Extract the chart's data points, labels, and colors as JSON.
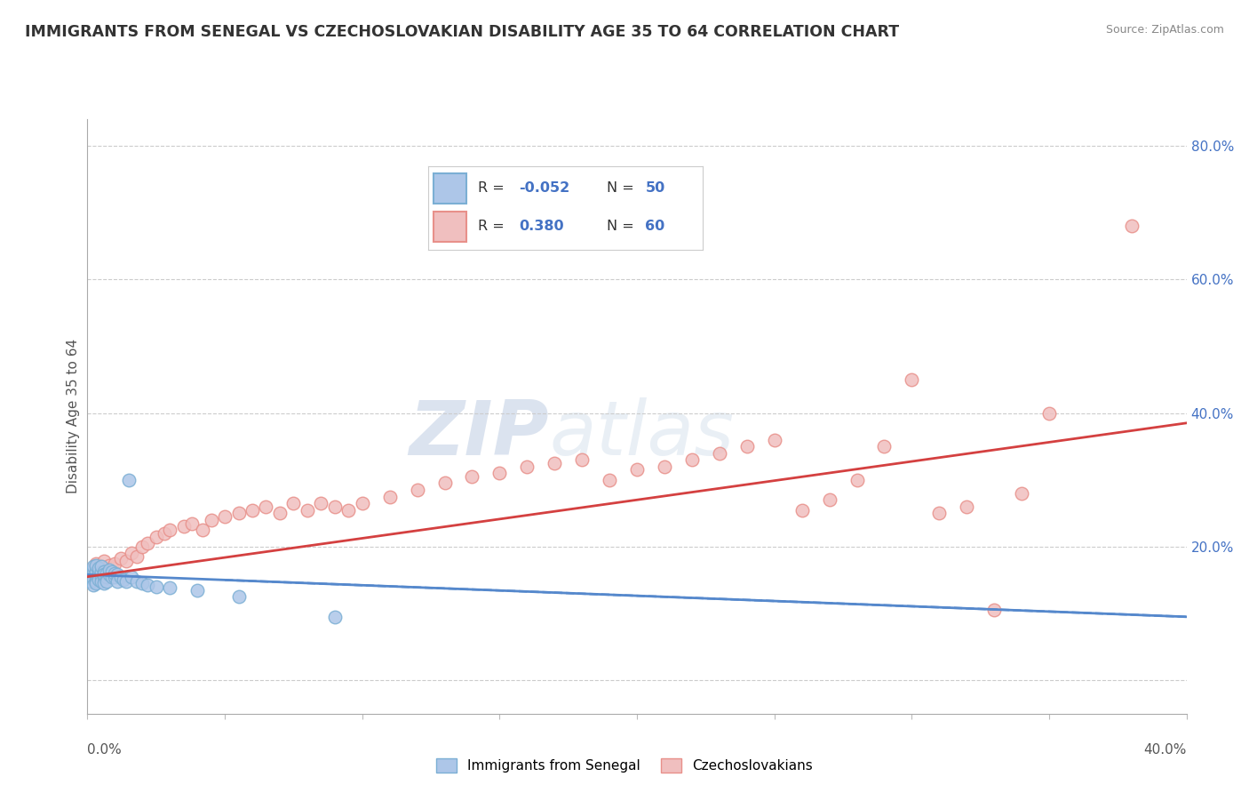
{
  "title": "IMMIGRANTS FROM SENEGAL VS CZECHOSLOVAKIAN DISABILITY AGE 35 TO 64 CORRELATION CHART",
  "source": "Source: ZipAtlas.com",
  "ylabel": "Disability Age 35 to 64",
  "xlim": [
    0.0,
    0.4
  ],
  "ylim": [
    -0.05,
    0.84
  ],
  "yticks": [
    0.0,
    0.2,
    0.4,
    0.6,
    0.8
  ],
  "ytick_labels": [
    "",
    "20.0%",
    "40.0%",
    "60.0%",
    "80.0%"
  ],
  "blue_color": "#7bafd4",
  "pink_color": "#e8908a",
  "blue_face": "#adc6e8",
  "pink_face": "#f0bfbf",
  "blue_line_color": "#5588cc",
  "pink_line_color": "#d44040",
  "watermark_zip": "ZIP",
  "watermark_atlas": "atlas",
  "blue_points_x": [
    0.001,
    0.001,
    0.001,
    0.002,
    0.002,
    0.002,
    0.002,
    0.002,
    0.003,
    0.003,
    0.003,
    0.003,
    0.003,
    0.003,
    0.004,
    0.004,
    0.004,
    0.004,
    0.005,
    0.005,
    0.005,
    0.005,
    0.006,
    0.006,
    0.006,
    0.006,
    0.007,
    0.007,
    0.007,
    0.008,
    0.008,
    0.009,
    0.009,
    0.01,
    0.01,
    0.011,
    0.011,
    0.012,
    0.013,
    0.014,
    0.015,
    0.016,
    0.018,
    0.02,
    0.022,
    0.025,
    0.03,
    0.04,
    0.055,
    0.09
  ],
  "blue_points_y": [
    0.155,
    0.162,
    0.148,
    0.158,
    0.165,
    0.15,
    0.142,
    0.17,
    0.16,
    0.155,
    0.148,
    0.163,
    0.172,
    0.145,
    0.158,
    0.162,
    0.15,
    0.168,
    0.155,
    0.162,
    0.148,
    0.17,
    0.155,
    0.162,
    0.145,
    0.158,
    0.155,
    0.16,
    0.148,
    0.158,
    0.165,
    0.155,
    0.162,
    0.155,
    0.16,
    0.158,
    0.148,
    0.155,
    0.15,
    0.148,
    0.3,
    0.155,
    0.148,
    0.145,
    0.142,
    0.14,
    0.138,
    0.135,
    0.125,
    0.095
  ],
  "pink_points_x": [
    0.001,
    0.002,
    0.003,
    0.004,
    0.005,
    0.006,
    0.007,
    0.008,
    0.009,
    0.01,
    0.012,
    0.014,
    0.016,
    0.018,
    0.02,
    0.022,
    0.025,
    0.028,
    0.03,
    0.035,
    0.038,
    0.042,
    0.045,
    0.05,
    0.055,
    0.06,
    0.065,
    0.07,
    0.075,
    0.08,
    0.085,
    0.09,
    0.095,
    0.1,
    0.11,
    0.12,
    0.13,
    0.14,
    0.15,
    0.16,
    0.17,
    0.18,
    0.19,
    0.2,
    0.21,
    0.22,
    0.23,
    0.24,
    0.25,
    0.26,
    0.27,
    0.28,
    0.29,
    0.3,
    0.31,
    0.32,
    0.33,
    0.34,
    0.35,
    0.38
  ],
  "pink_points_y": [
    0.162,
    0.168,
    0.175,
    0.162,
    0.17,
    0.178,
    0.165,
    0.172,
    0.168,
    0.175,
    0.182,
    0.178,
    0.19,
    0.185,
    0.2,
    0.205,
    0.215,
    0.22,
    0.225,
    0.23,
    0.235,
    0.225,
    0.24,
    0.245,
    0.25,
    0.255,
    0.26,
    0.25,
    0.265,
    0.255,
    0.265,
    0.26,
    0.255,
    0.265,
    0.275,
    0.285,
    0.295,
    0.305,
    0.31,
    0.32,
    0.325,
    0.33,
    0.3,
    0.315,
    0.32,
    0.33,
    0.34,
    0.35,
    0.36,
    0.255,
    0.27,
    0.3,
    0.35,
    0.45,
    0.25,
    0.26,
    0.105,
    0.28,
    0.4,
    0.68
  ],
  "pink_line_start_y": 0.155,
  "pink_line_end_y": 0.385,
  "blue_line_start_y": 0.158,
  "blue_line_end_y": 0.095
}
